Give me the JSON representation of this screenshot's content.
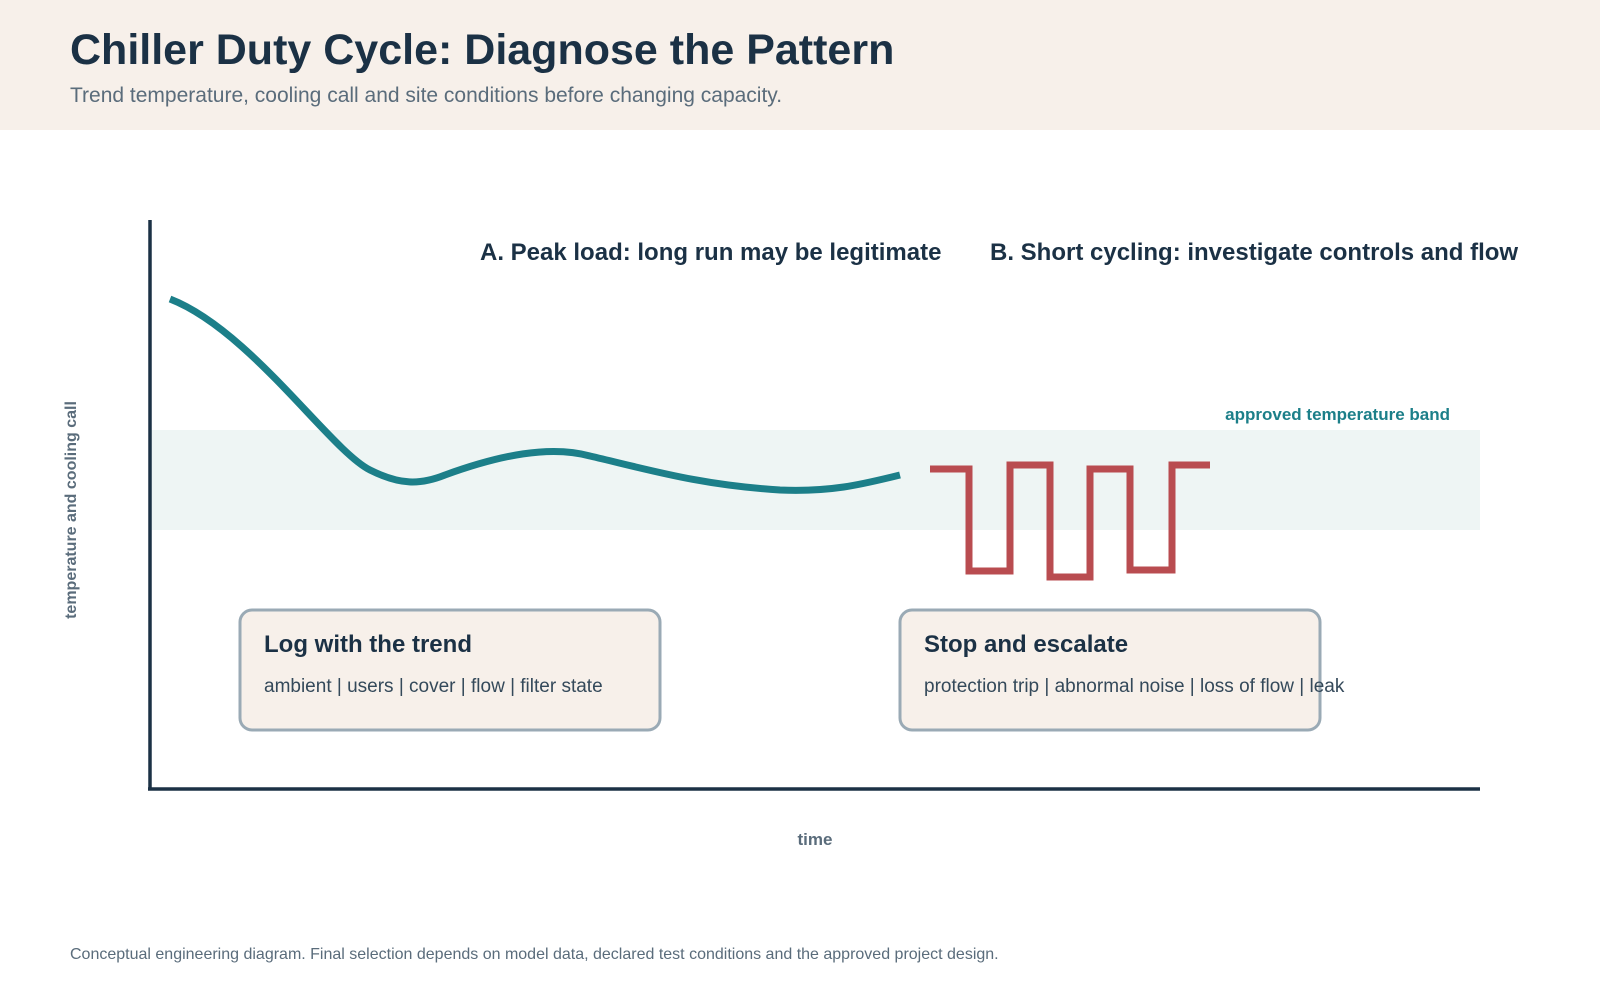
{
  "header": {
    "title": "Chiller Duty Cycle: Diagnose the Pattern",
    "subtitle": "Trend temperature, cooling call and site conditions before changing capacity."
  },
  "diagram": {
    "y_axis_label": "temperature and cooling call",
    "x_axis_label": "time",
    "band_label": "approved temperature band",
    "section_a_label": "A. Peak load: long run may be legitimate",
    "section_b_label": "B. Short cycling: investigate controls and flow",
    "box_log": {
      "title": "Log with the trend",
      "body": "ambient | users | cover | flow | filter state"
    },
    "box_stop": {
      "title": "Stop and escalate",
      "body": "protection trip | abnormal noise | loss of flow | leak"
    }
  },
  "footer": {
    "note": "Conceptual engineering diagram. Final selection depends on model data, declared test conditions and the approved project design."
  },
  "colors": {
    "header_bg": "#f7f0ea",
    "title": "#1b3145",
    "muted_text": "#5a6c7b",
    "teal_curve": "#1c7f89",
    "band_fill": "#eef5f4",
    "band_label": "#1c7f89",
    "cycling_red": "#b94c50",
    "box_fill": "#f7f0ea",
    "box_border": "#9aaab5",
    "axis": "#1b3145"
  }
}
